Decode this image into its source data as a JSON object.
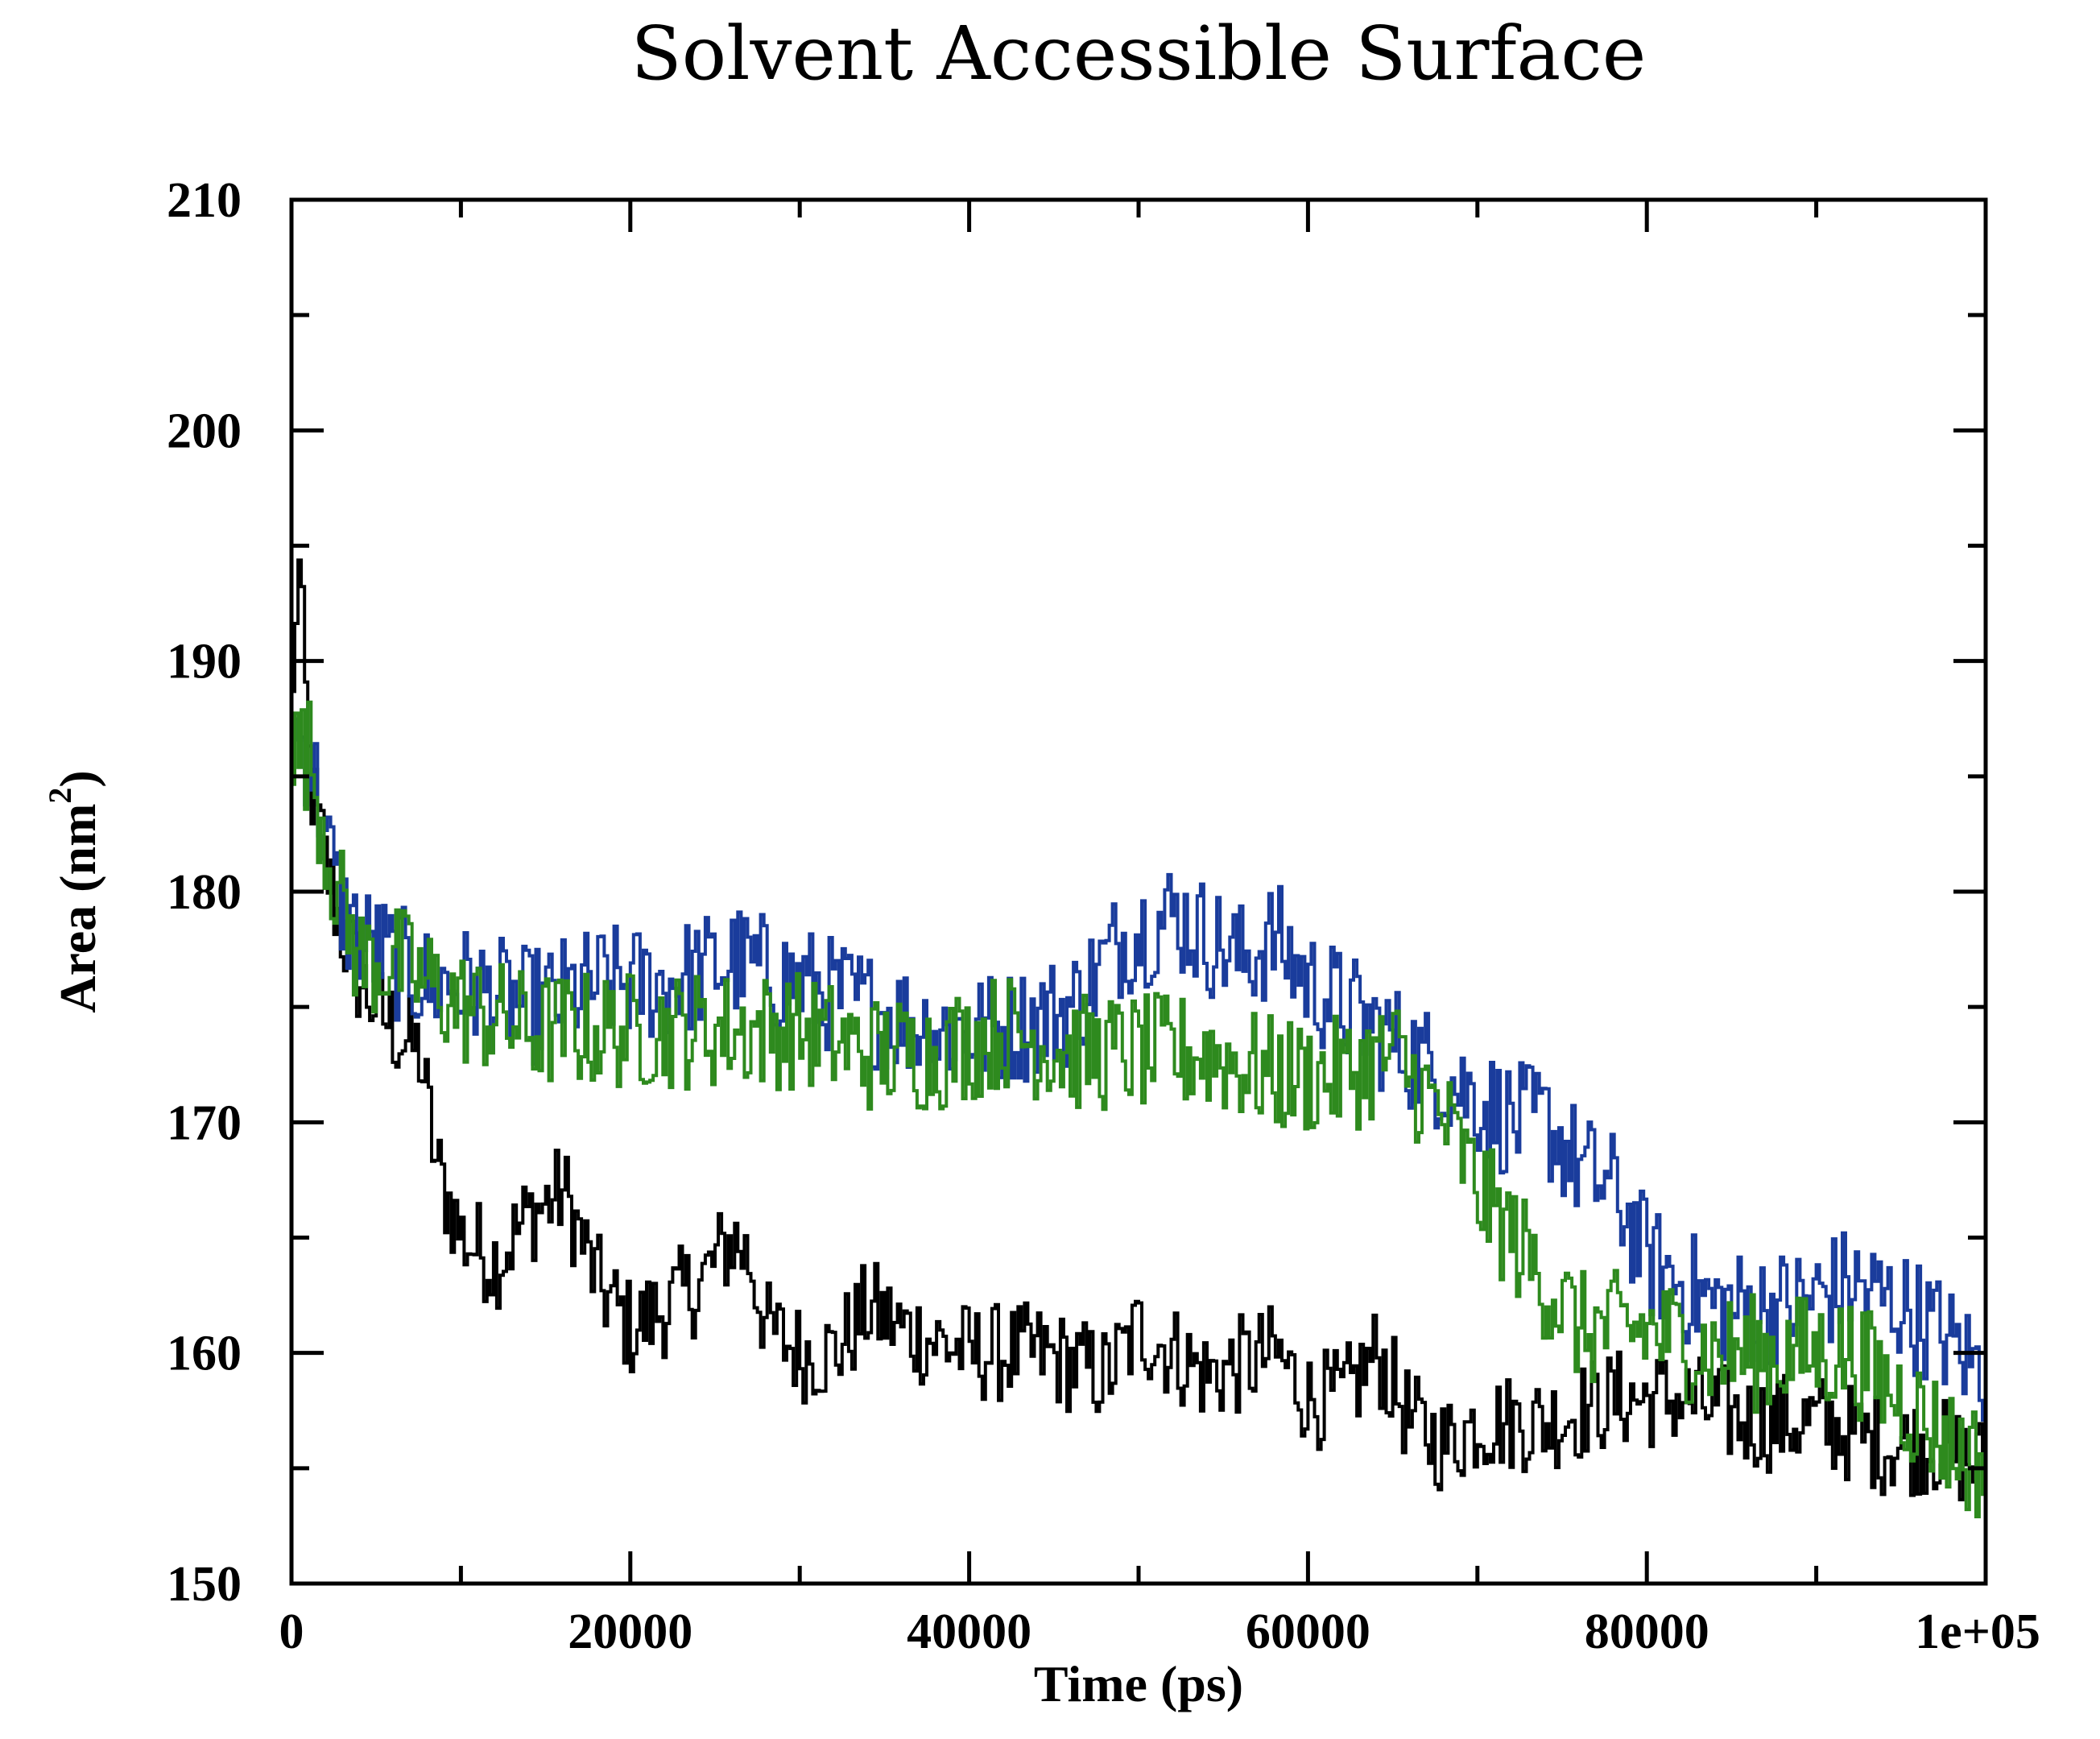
{
  "chart_data": {
    "type": "line",
    "title": "Solvent Accessible Surface",
    "xlabel": "Time (ps)",
    "ylabel": "Area (nm",
    "ylabel_sup": "2",
    "ylabel_close": ")",
    "xlim": [
      0,
      100000
    ],
    "ylim": [
      150,
      210
    ],
    "x_ticks": [
      {
        "value": 0,
        "label": "0"
      },
      {
        "value": 20000,
        "label": "20000"
      },
      {
        "value": 40000,
        "label": "40000"
      },
      {
        "value": 60000,
        "label": "60000"
      },
      {
        "value": 80000,
        "label": "80000"
      },
      {
        "value": 100000,
        "label": "1e+05"
      }
    ],
    "x_minor_step": 10000,
    "y_ticks": [
      {
        "value": 150,
        "label": "150"
      },
      {
        "value": 160,
        "label": "160"
      },
      {
        "value": 170,
        "label": "170"
      },
      {
        "value": 180,
        "label": "180"
      },
      {
        "value": 190,
        "label": "190"
      },
      {
        "value": 200,
        "label": "200"
      },
      {
        "value": 210,
        "label": "210"
      }
    ],
    "y_minor_step": 5,
    "grid": false,
    "series": [
      {
        "name": "black",
        "color": "#000000",
        "noise": 2.2,
        "points": [
          [
            0,
            188
          ],
          [
            300,
            195
          ],
          [
            1000,
            185
          ],
          [
            2000,
            181
          ],
          [
            3000,
            178
          ],
          [
            4000,
            176
          ],
          [
            6000,
            174
          ],
          [
            7500,
            173
          ],
          [
            8500,
            168
          ],
          [
            10000,
            165
          ],
          [
            12000,
            164
          ],
          [
            14000,
            166
          ],
          [
            16000,
            167
          ],
          [
            18000,
            163
          ],
          [
            20000,
            161
          ],
          [
            22000,
            162
          ],
          [
            24000,
            163
          ],
          [
            26000,
            165
          ],
          [
            27000,
            164
          ],
          [
            28000,
            161
          ],
          [
            30000,
            160
          ],
          [
            32000,
            160
          ],
          [
            34000,
            162
          ],
          [
            36000,
            161
          ],
          [
            40000,
            160
          ],
          [
            44000,
            160
          ],
          [
            48000,
            159
          ],
          [
            50000,
            161
          ],
          [
            54000,
            159
          ],
          [
            58000,
            160
          ],
          [
            60000,
            158
          ],
          [
            62000,
            158
          ],
          [
            64000,
            160
          ],
          [
            66000,
            157
          ],
          [
            68000,
            156
          ],
          [
            70000,
            157
          ],
          [
            74000,
            157
          ],
          [
            78000,
            158
          ],
          [
            82000,
            158
          ],
          [
            86000,
            157
          ],
          [
            90000,
            157
          ],
          [
            94000,
            156
          ],
          [
            97000,
            156
          ],
          [
            100000,
            155
          ]
        ]
      },
      {
        "name": "blue",
        "color": "#1a3c9c",
        "noise": 2.6,
        "points": [
          [
            0,
            187
          ],
          [
            1000,
            186
          ],
          [
            2000,
            182
          ],
          [
            3000,
            179
          ],
          [
            4000,
            178
          ],
          [
            6000,
            177
          ],
          [
            8000,
            176
          ],
          [
            10000,
            176
          ],
          [
            14000,
            175
          ],
          [
            18000,
            176
          ],
          [
            22000,
            176
          ],
          [
            26000,
            177
          ],
          [
            30000,
            176
          ],
          [
            34000,
            175
          ],
          [
            38000,
            174
          ],
          [
            42000,
            174
          ],
          [
            46000,
            175
          ],
          [
            49000,
            178
          ],
          [
            52000,
            179
          ],
          [
            54000,
            178
          ],
          [
            56000,
            177
          ],
          [
            58000,
            178
          ],
          [
            60000,
            176
          ],
          [
            64000,
            174
          ],
          [
            68000,
            172
          ],
          [
            70000,
            171
          ],
          [
            72000,
            170
          ],
          [
            74000,
            170
          ],
          [
            76000,
            168
          ],
          [
            78000,
            167
          ],
          [
            80000,
            164
          ],
          [
            84000,
            162
          ],
          [
            88000,
            162
          ],
          [
            92000,
            163
          ],
          [
            95000,
            162
          ],
          [
            97000,
            161
          ],
          [
            100000,
            159
          ]
        ]
      },
      {
        "name": "green",
        "color": "#2e8a1e",
        "noise": 2.6,
        "points": [
          [
            0,
            186
          ],
          [
            1000,
            186
          ],
          [
            2000,
            182
          ],
          [
            3000,
            179
          ],
          [
            4000,
            177
          ],
          [
            6000,
            177
          ],
          [
            8000,
            176
          ],
          [
            10000,
            175
          ],
          [
            14000,
            174
          ],
          [
            18000,
            174
          ],
          [
            22000,
            174
          ],
          [
            26000,
            174
          ],
          [
            30000,
            174
          ],
          [
            34000,
            173
          ],
          [
            38000,
            173
          ],
          [
            42000,
            174
          ],
          [
            46000,
            173
          ],
          [
            50000,
            173
          ],
          [
            54000,
            173
          ],
          [
            58000,
            172
          ],
          [
            62000,
            172
          ],
          [
            65000,
            173
          ],
          [
            68000,
            170
          ],
          [
            70000,
            167
          ],
          [
            72000,
            165
          ],
          [
            74000,
            163
          ],
          [
            76000,
            161
          ],
          [
            78000,
            161
          ],
          [
            80000,
            161
          ],
          [
            84000,
            160
          ],
          [
            88000,
            160
          ],
          [
            92000,
            160
          ],
          [
            95000,
            158
          ],
          [
            98000,
            156
          ],
          [
            100000,
            155
          ]
        ]
      }
    ]
  }
}
